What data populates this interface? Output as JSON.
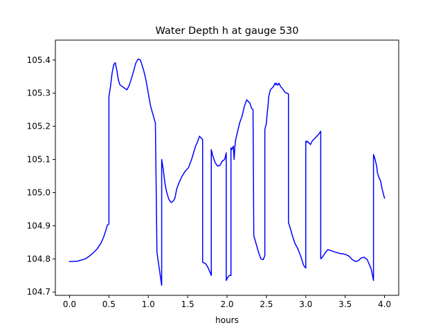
{
  "chart_data": {
    "type": "line",
    "title": "Water Depth h at gauge 530",
    "xlabel": "hours",
    "ylabel": "",
    "xlim": [
      -0.18,
      4.18
    ],
    "ylim": [
      104.69,
      105.46
    ],
    "xticks": [
      0.0,
      0.5,
      1.0,
      1.5,
      2.0,
      2.5,
      3.0,
      3.5,
      4.0
    ],
    "xtick_labels": [
      "0.0",
      "0.5",
      "1.0",
      "1.5",
      "2.0",
      "2.5",
      "3.0",
      "3.5",
      "4.0"
    ],
    "yticks": [
      104.7,
      104.8,
      104.9,
      105.0,
      105.1,
      105.2,
      105.3,
      105.4
    ],
    "ytick_labels": [
      "104.7",
      "104.8",
      "104.9",
      "105.0",
      "105.1",
      "105.2",
      "105.3",
      "105.4"
    ],
    "grid": false,
    "series": [
      {
        "color": "#0000ff",
        "x": [
          0.0,
          0.1,
          0.2,
          0.25,
          0.3,
          0.35,
          0.4,
          0.43,
          0.46,
          0.48,
          0.5,
          0.5,
          0.52,
          0.54,
          0.56,
          0.58,
          0.6,
          0.62,
          0.64,
          0.67,
          0.7,
          0.73,
          0.76,
          0.8,
          0.84,
          0.87,
          0.9,
          0.92,
          0.94,
          0.97,
          1.0,
          1.03,
          1.06,
          1.09,
          1.11,
          1.11,
          1.17,
          1.17,
          1.19,
          1.21,
          1.23,
          1.26,
          1.29,
          1.32,
          1.34,
          1.36,
          1.39,
          1.43,
          1.47,
          1.51,
          1.55,
          1.6,
          1.62,
          1.65,
          1.67,
          1.69,
          1.69,
          1.73,
          1.76,
          1.8,
          1.8,
          1.82,
          1.85,
          1.88,
          1.91,
          1.94,
          1.97,
          1.99,
          1.99,
          2.01,
          2.03,
          2.05,
          2.05,
          2.06,
          2.08,
          2.09,
          2.1,
          2.11,
          2.13,
          2.16,
          2.19,
          2.22,
          2.25,
          2.27,
          2.29,
          2.31,
          2.33,
          2.34,
          2.34,
          2.37,
          2.4,
          2.43,
          2.46,
          2.48,
          2.48,
          2.5,
          2.51,
          2.52,
          2.53,
          2.55,
          2.57,
          2.59,
          2.61,
          2.62,
          2.63,
          2.64,
          2.65,
          2.66,
          2.68,
          2.7,
          2.72,
          2.74,
          2.76,
          2.78,
          2.78,
          2.8,
          2.83,
          2.86,
          2.9,
          2.94,
          2.97,
          2.99,
          3.0,
          3.0,
          3.01,
          3.02,
          3.04,
          3.06,
          3.08,
          3.12,
          3.16,
          3.19,
          3.19,
          3.21,
          3.23,
          3.25,
          3.28,
          3.32,
          3.38,
          3.44,
          3.48,
          3.52,
          3.55,
          3.58,
          3.61,
          3.64,
          3.67,
          3.7,
          3.74,
          3.78,
          3.83,
          3.86,
          3.86,
          3.88,
          3.9,
          3.91,
          3.93,
          3.95,
          3.97,
          4.0
        ],
        "y": [
          104.792,
          104.793,
          104.8,
          104.808,
          104.818,
          104.83,
          104.848,
          104.864,
          104.885,
          104.902,
          104.905,
          105.29,
          105.32,
          105.36,
          105.385,
          105.392,
          105.37,
          105.34,
          105.325,
          105.32,
          105.315,
          105.31,
          105.325,
          105.355,
          105.39,
          105.403,
          105.4,
          105.385,
          105.37,
          105.34,
          105.3,
          105.26,
          105.235,
          105.21,
          104.82,
          104.82,
          104.72,
          105.1,
          105.07,
          105.03,
          105.005,
          104.98,
          104.97,
          104.975,
          104.985,
          105.01,
          105.03,
          105.05,
          105.065,
          105.075,
          105.1,
          105.14,
          105.15,
          105.17,
          105.165,
          105.16,
          104.79,
          104.785,
          104.773,
          104.75,
          105.13,
          105.11,
          105.09,
          105.08,
          105.082,
          105.095,
          105.1,
          105.12,
          104.735,
          104.745,
          104.75,
          104.75,
          105.135,
          105.13,
          105.14,
          105.1,
          105.14,
          105.16,
          105.18,
          105.21,
          105.23,
          105.26,
          105.28,
          105.275,
          105.27,
          105.255,
          105.25,
          104.87,
          104.87,
          104.845,
          104.82,
          104.8,
          104.798,
          104.81,
          105.19,
          105.21,
          105.24,
          105.26,
          105.29,
          105.31,
          105.315,
          105.32,
          105.33,
          105.325,
          105.33,
          105.325,
          105.325,
          105.33,
          105.32,
          105.315,
          105.308,
          105.302,
          105.3,
          105.298,
          104.91,
          104.895,
          104.87,
          104.848,
          104.83,
          104.805,
          104.782,
          104.775,
          104.772,
          105.155,
          105.152,
          105.155,
          105.15,
          105.145,
          105.155,
          105.165,
          105.175,
          105.185,
          104.8,
          104.805,
          104.812,
          104.82,
          104.828,
          104.825,
          104.82,
          104.816,
          104.815,
          104.812,
          104.808,
          104.8,
          104.795,
          104.792,
          104.795,
          104.802,
          104.805,
          104.798,
          104.77,
          104.735,
          105.115,
          105.1,
          105.08,
          105.06,
          105.045,
          105.035,
          105.01,
          104.983
        ]
      }
    ]
  }
}
